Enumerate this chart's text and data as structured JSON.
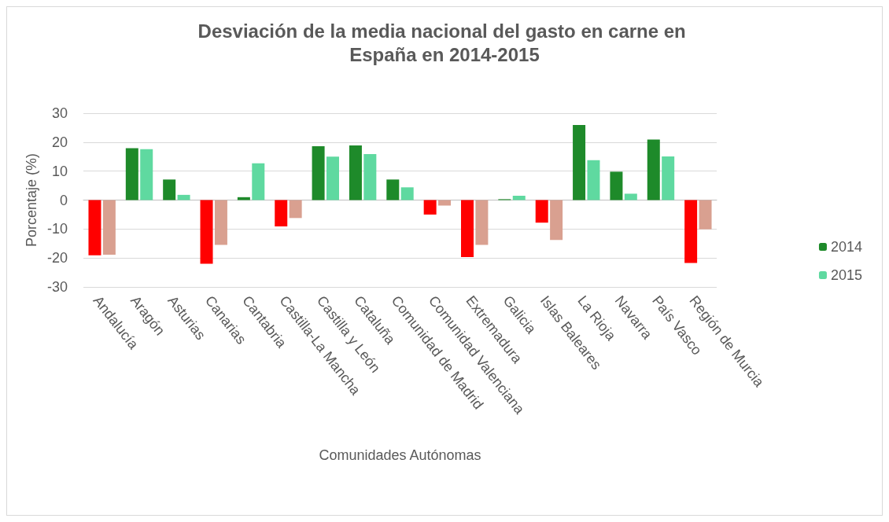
{
  "chart_data": {
    "type": "bar",
    "title": "Desviación de la media nacional del gasto en carne en España en 2014-2015",
    "xlabel": "Comunidades Autónomas",
    "ylabel": "Porcentaje (%)",
    "categories": [
      "Andalucía",
      "Aragón",
      "Asturias",
      "Canarias",
      "Cantabria",
      "Castilla-La Mancha",
      "Castilla y León",
      "Cataluña",
      "Comunidad de Madrid",
      "Comunidad Valenciana",
      "Extremadura",
      "Galicia",
      "Islas Baleares",
      "La Rioja",
      "Navarra",
      "País Vasco",
      "Región de Murcia"
    ],
    "series": [
      {
        "name": "2014",
        "color": "#1e8a2a",
        "colors": [
          "#ff0000",
          "#1e8a2a",
          "#1e8a2a",
          "#ff0000",
          "#1e8a2a",
          "#ff0000",
          "#1e8a2a",
          "#1e8a2a",
          "#1e8a2a",
          "#ff0000",
          "#ff0000",
          "#1e8a2a",
          "#ff0000",
          "#1e8a2a",
          "#1e8a2a",
          "#1e8a2a",
          "#ff0000"
        ],
        "values": [
          -19.1,
          17.9,
          7.1,
          -22,
          1,
          -9.1,
          18.6,
          18.9,
          7.1,
          -5,
          -19.7,
          0.3,
          -7.8,
          25.9,
          9.8,
          20.9,
          -21.7
        ]
      },
      {
        "name": "2015",
        "color": "#5fd9a0",
        "colors": [
          "#d9a090",
          "#5fd9a0",
          "#5fd9a0",
          "#d9a090",
          "#5fd9a0",
          "#d9a090",
          "#5fd9a0",
          "#5fd9a0",
          "#5fd9a0",
          "#d9a090",
          "#d9a090",
          "#5fd9a0",
          "#d9a090",
          "#5fd9a0",
          "#5fd9a0",
          "#5fd9a0",
          "#d9a090"
        ],
        "values": [
          -18.9,
          17.6,
          1.8,
          -15.5,
          12.7,
          -6.2,
          15,
          15.9,
          4.4,
          -1.9,
          -15.5,
          1.5,
          -13.8,
          13.8,
          2.2,
          15.1,
          -10.1
        ]
      }
    ],
    "ylim": [
      -30,
      30
    ],
    "yticks": [
      -30,
      -20,
      -10,
      0,
      10,
      20,
      30
    ],
    "grid": "y",
    "legend": "right"
  }
}
